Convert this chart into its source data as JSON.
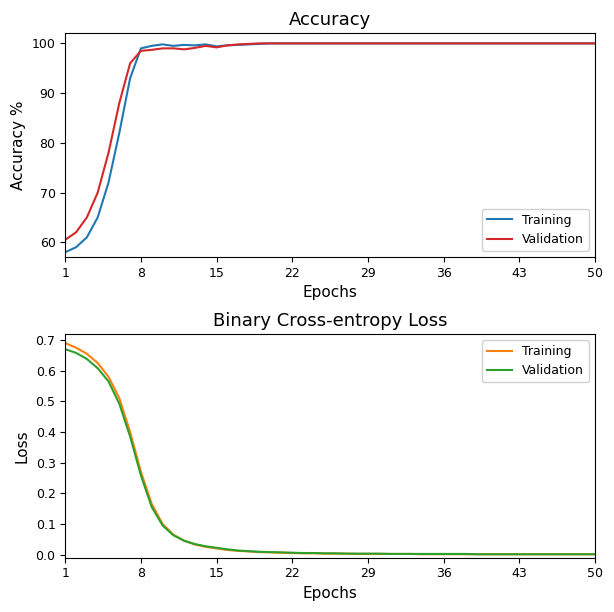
{
  "title_accuracy": "Accuracy",
  "title_loss": "Binary Cross-entropy Loss",
  "xlabel": "Epochs",
  "ylabel_accuracy": "Accuracy %",
  "ylabel_loss": "Loss",
  "epochs": 50,
  "xticks": [
    1,
    8,
    15,
    22,
    29,
    36,
    43,
    50
  ],
  "acc_train": [
    58,
    59,
    61,
    65,
    72,
    82,
    93,
    99,
    99.5,
    99.8,
    99.5,
    99.7,
    99.6,
    99.8,
    99.4,
    99.6,
    99.7,
    99.8,
    99.9,
    100,
    100,
    100,
    100,
    100,
    100,
    100,
    100,
    100,
    100,
    100,
    100,
    100,
    100,
    100,
    100,
    100,
    100,
    100,
    100,
    100,
    100,
    100,
    100,
    100,
    100,
    100,
    100,
    100,
    100,
    100
  ],
  "acc_val": [
    60.5,
    62,
    65,
    70,
    78,
    88,
    96,
    98.5,
    98.7,
    99.0,
    99.0,
    98.8,
    99.1,
    99.5,
    99.2,
    99.6,
    99.8,
    99.9,
    100,
    100,
    100,
    100,
    100,
    100,
    100,
    100,
    100,
    100,
    100,
    100,
    100,
    100,
    100,
    100,
    100,
    100,
    100,
    100,
    100,
    100,
    100,
    100,
    100,
    100,
    100,
    100,
    100,
    100,
    100,
    100
  ],
  "loss_train": [
    0.69,
    0.675,
    0.655,
    0.625,
    0.58,
    0.51,
    0.4,
    0.27,
    0.165,
    0.1,
    0.065,
    0.045,
    0.033,
    0.025,
    0.02,
    0.015,
    0.012,
    0.01,
    0.008,
    0.007,
    0.006,
    0.005,
    0.004,
    0.004,
    0.003,
    0.003,
    0.003,
    0.002,
    0.002,
    0.002,
    0.002,
    0.002,
    0.002,
    0.001,
    0.001,
    0.001,
    0.001,
    0.001,
    0.001,
    0.001,
    0.001,
    0.001,
    0.001,
    0.001,
    0.001,
    0.001,
    0.001,
    0.001,
    0.001,
    0.001
  ],
  "loss_val": [
    0.67,
    0.658,
    0.638,
    0.608,
    0.565,
    0.492,
    0.385,
    0.258,
    0.155,
    0.095,
    0.063,
    0.045,
    0.034,
    0.027,
    0.022,
    0.017,
    0.013,
    0.011,
    0.009,
    0.008,
    0.007,
    0.006,
    0.005,
    0.005,
    0.004,
    0.004,
    0.003,
    0.003,
    0.003,
    0.003,
    0.002,
    0.002,
    0.002,
    0.002,
    0.002,
    0.002,
    0.002,
    0.002,
    0.001,
    0.001,
    0.001,
    0.001,
    0.001,
    0.001,
    0.001,
    0.001,
    0.001,
    0.001,
    0.001,
    0.001
  ],
  "acc_train_color": "#1f77b4",
  "acc_val_color": "#d62728",
  "loss_train_color": "#ff7f0e",
  "loss_val_color": "#2ca02c",
  "acc_ylim": [
    57,
    102
  ],
  "acc_yticks": [
    60,
    70,
    80,
    90,
    100
  ],
  "loss_ylim": [
    -0.01,
    0.72
  ],
  "loss_yticks": [
    0.0,
    0.1,
    0.2,
    0.3,
    0.4,
    0.5,
    0.6,
    0.7
  ],
  "legend_acc_labels": [
    "Training",
    "Validation"
  ],
  "legend_loss_labels": [
    "Training",
    "Validation"
  ],
  "linewidth": 1.5,
  "fig_width": 6.14,
  "fig_height": 6.12,
  "dpi": 100
}
